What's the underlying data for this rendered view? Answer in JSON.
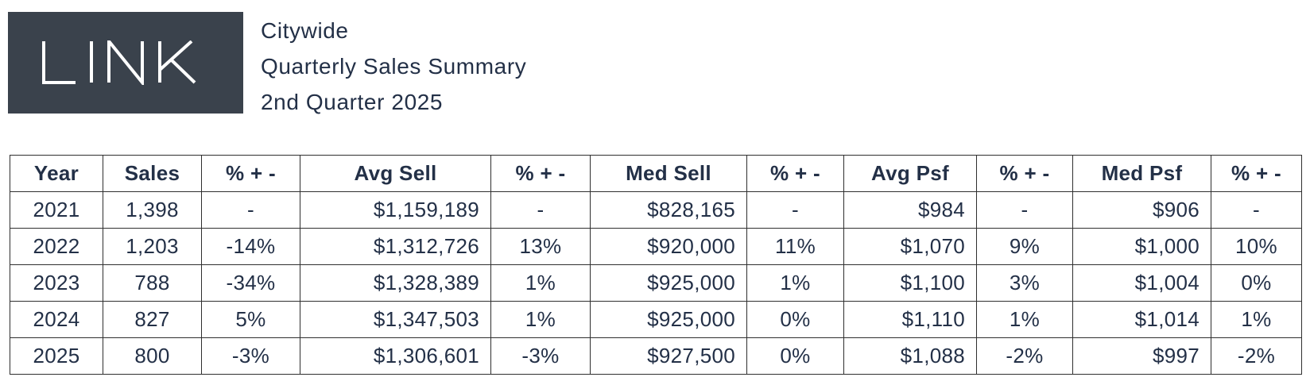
{
  "brand": {
    "logo_text": "LINK",
    "logo_bg_color": "#3a424c",
    "logo_text_color": "#ffffff"
  },
  "title": {
    "line1": "Citywide",
    "line2": "Quarterly Sales Summary",
    "line3": "2nd Quarter 2025"
  },
  "colors": {
    "text": "#233047",
    "border": "#2f2f2f",
    "background": "#ffffff"
  },
  "table": {
    "columns": [
      "Year",
      "Sales",
      "% + -",
      "Avg Sell",
      "% + -",
      "Med Sell",
      "% + -",
      "Avg Psf",
      "% + -",
      "Med Psf",
      "% + -"
    ],
    "rows": [
      [
        "2021",
        "1,398",
        "-",
        "$1,159,189",
        "-",
        "$828,165",
        "-",
        "$984",
        "-",
        "$906",
        "-"
      ],
      [
        "2022",
        "1,203",
        "-14%",
        "$1,312,726",
        "13%",
        "$920,000",
        "11%",
        "$1,070",
        "9%",
        "$1,000",
        "10%"
      ],
      [
        "2023",
        "788",
        "-34%",
        "$1,328,389",
        "1%",
        "$925,000",
        "1%",
        "$1,100",
        "3%",
        "$1,004",
        "0%"
      ],
      [
        "2024",
        "827",
        "5%",
        "$1,347,503",
        "1%",
        "$925,000",
        "0%",
        "$1,110",
        "1%",
        "$1,014",
        "1%"
      ],
      [
        "2025",
        "800",
        "-3%",
        "$1,306,601",
        "-3%",
        "$927,500",
        "0%",
        "$1,088",
        "-2%",
        "$997",
        "-2%"
      ]
    ]
  }
}
